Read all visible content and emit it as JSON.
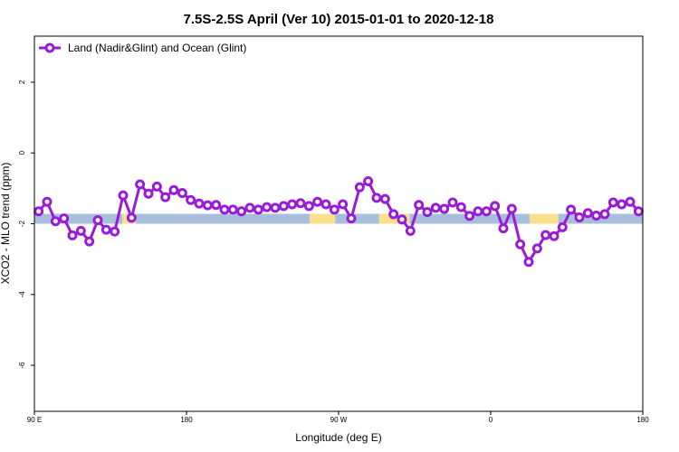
{
  "chart_data": {
    "type": "line",
    "title": "7.5S-2.5S April (Ver 10)   2015-01-01 to 2020-12-18",
    "xlabel": "Longitude (deg E)",
    "ylabel": "XCO2 - MLO trend (ppm)",
    "xlim": [
      90,
      450
    ],
    "ylim": [
      -7.3,
      3.3
    ],
    "x_ticks": [
      {
        "value": 90,
        "label": "90 E"
      },
      {
        "value": 180,
        "label": "180"
      },
      {
        "value": 270,
        "label": "90 W"
      },
      {
        "value": 360,
        "label": "0"
      },
      {
        "value": 450,
        "label": "180"
      }
    ],
    "y_ticks": [
      {
        "value": 2,
        "label": "2"
      },
      {
        "value": 0,
        "label": "0"
      },
      {
        "value": -2,
        "label": "-2"
      },
      {
        "value": -4,
        "label": "-4"
      },
      {
        "value": -6,
        "label": "-6"
      }
    ],
    "legend": {
      "placement": "top-left"
    },
    "background_band": {
      "y_range": [
        -2.0,
        -1.72
      ],
      "segments": [
        {
          "x_range": [
            90,
            142
          ],
          "type": "land"
        },
        {
          "x_range": [
            142,
            150
          ],
          "type": "ocean"
        },
        {
          "x_range": [
            150,
            253
          ],
          "type": "land"
        },
        {
          "x_range": [
            253,
            268
          ],
          "type": "ocean"
        },
        {
          "x_range": [
            268,
            294
          ],
          "type": "land"
        },
        {
          "x_range": [
            294,
            312
          ],
          "type": "ocean"
        },
        {
          "x_range": [
            312,
            383
          ],
          "type": "land"
        },
        {
          "x_range": [
            383,
            400
          ],
          "type": "ocean"
        },
        {
          "x_range": [
            400,
            450
          ],
          "type": "land"
        }
      ],
      "colors": {
        "land": "#a7bfdc",
        "ocean": "#fbe08c"
      }
    },
    "series": [
      {
        "name": "Land (Nadir&Glint) and Ocean (Glint)",
        "color": "#9a1bd6",
        "x": [
          92.5,
          97.5,
          102.5,
          107.5,
          112.5,
          117.5,
          122.5,
          127.5,
          132.5,
          137.5,
          142.5,
          147.5,
          152.5,
          157.5,
          162.5,
          167.5,
          172.5,
          177.5,
          182.5,
          187.5,
          192.5,
          197.5,
          202.5,
          207.5,
          212.5,
          217.5,
          222.5,
          227.5,
          232.5,
          237.5,
          242.5,
          247.5,
          252.5,
          257.5,
          262.5,
          267.5,
          272.5,
          277.5,
          282.5,
          287.5,
          292.5,
          297.5,
          302.5,
          307.5,
          312.5,
          317.5,
          322.5,
          327.5,
          332.5,
          337.5,
          342.5,
          347.5,
          352.5,
          357.5,
          362.5,
          367.5,
          372.5,
          377.5,
          382.5,
          387.5,
          392.5,
          397.5,
          402.5,
          407.5,
          412.5,
          417.5,
          422.5,
          427.5,
          432.5,
          437.5,
          442.5,
          447.5
        ],
        "values": [
          -1.65,
          -1.38,
          -1.93,
          -1.85,
          -2.33,
          -2.2,
          -2.5,
          -1.9,
          -2.17,
          -2.22,
          -1.2,
          -1.83,
          -0.89,
          -1.15,
          -0.95,
          -1.25,
          -1.05,
          -1.13,
          -1.33,
          -1.43,
          -1.48,
          -1.47,
          -1.6,
          -1.6,
          -1.65,
          -1.55,
          -1.6,
          -1.53,
          -1.55,
          -1.5,
          -1.45,
          -1.42,
          -1.5,
          -1.38,
          -1.45,
          -1.6,
          -1.45,
          -1.85,
          -0.97,
          -0.8,
          -1.27,
          -1.3,
          -1.73,
          -1.88,
          -2.2,
          -1.47,
          -1.67,
          -1.55,
          -1.58,
          -1.4,
          -1.53,
          -1.78,
          -1.65,
          -1.65,
          -1.5,
          -2.13,
          -1.58,
          -2.58,
          -3.08,
          -2.7,
          -2.32,
          -2.35,
          -2.1,
          -1.6,
          -1.82,
          -1.7,
          -1.77,
          -1.73,
          -1.4,
          -1.45,
          -1.38,
          -1.65
        ]
      }
    ]
  }
}
